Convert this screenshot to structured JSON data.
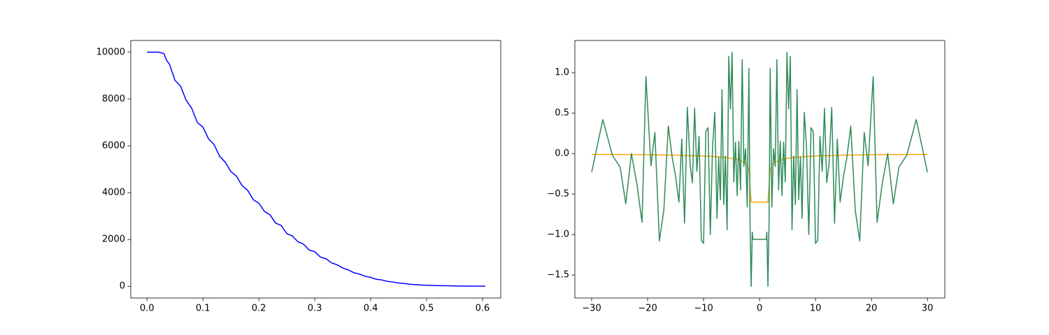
{
  "chart_data": [
    {
      "type": "line",
      "x": [
        0,
        0.01,
        0.02,
        0.03,
        0.035,
        0.04,
        0.05,
        0.06,
        0.07,
        0.08,
        0.09,
        0.1,
        0.11,
        0.12,
        0.13,
        0.14,
        0.15,
        0.16,
        0.17,
        0.18,
        0.19,
        0.2,
        0.21,
        0.22,
        0.23,
        0.24,
        0.25,
        0.26,
        0.27,
        0.28,
        0.29,
        0.3,
        0.31,
        0.32,
        0.33,
        0.34,
        0.35,
        0.36,
        0.37,
        0.38,
        0.39,
        0.4,
        0.41,
        0.42,
        0.43,
        0.44,
        0.45,
        0.46,
        0.47,
        0.48,
        0.49,
        0.5,
        0.52,
        0.54,
        0.56,
        0.58,
        0.6,
        0.605
      ],
      "values": [
        10000,
        10000,
        10000,
        9950,
        9650,
        9500,
        8800,
        8550,
        7950,
        7600,
        7000,
        6800,
        6300,
        6050,
        5550,
        5300,
        4900,
        4700,
        4300,
        4100,
        3700,
        3550,
        3200,
        3050,
        2700,
        2600,
        2250,
        2150,
        1900,
        1800,
        1550,
        1480,
        1250,
        1180,
        1000,
        920,
        780,
        700,
        580,
        520,
        430,
        380,
        300,
        270,
        210,
        180,
        140,
        120,
        90,
        70,
        55,
        45,
        30,
        20,
        12,
        8,
        5,
        5
      ],
      "color": "#0000ff",
      "xlim": [
        -0.029,
        0.6325
      ],
      "xticks": [
        {
          "value": 0,
          "label": "0.0"
        },
        0.1,
        0.2,
        0.3,
        0.4,
        0.5,
        0.6
      ],
      "ylim": [
        -500,
        10500
      ],
      "yticks": [
        0,
        2000,
        4000,
        6000,
        8000,
        10000
      ]
    },
    {
      "type": "line",
      "x": [
        -30,
        -28,
        -26.3,
        -24.9,
        -23.9,
        -22.9,
        -21.9,
        -21.0,
        -20.3,
        -19.4,
        -18.7,
        -17.9,
        -17.1,
        -16.3,
        -15.6,
        -15.0,
        -14.4,
        -13.9,
        -13.4,
        -12.9,
        -12.4,
        -12.0,
        -11.6,
        -11.2,
        -10.8,
        -10.4,
        -10.0,
        -9.6,
        -9.2,
        -8.8,
        -8.4,
        -8.0,
        -7.6,
        -7.3,
        -7.0,
        -6.7,
        -6.4,
        -6.1,
        -5.8,
        -5.5,
        -5.2,
        -4.9,
        -4.6,
        -4.3,
        -4.0,
        -3.7,
        -3.4,
        -3.1,
        -2.8,
        -2.5,
        -2.2,
        -1.9,
        -1.7,
        -1.5,
        -1.3,
        -1.2,
        0,
        1.2,
        1.3,
        1.5,
        1.7,
        1.9,
        2.2,
        2.5,
        2.8,
        3.1,
        3.4,
        3.7,
        4.0,
        4.3,
        4.6,
        4.9,
        5.2,
        5.5,
        5.8,
        6.1,
        6.4,
        6.7,
        7.0,
        7.3,
        7.6,
        8.0,
        8.4,
        8.8,
        9.2,
        9.6,
        10.0,
        10.4,
        10.8,
        11.2,
        11.6,
        12.0,
        12.4,
        12.9,
        13.4,
        13.9,
        14.4,
        15.0,
        15.6,
        16.3,
        17.1,
        17.9,
        18.7,
        19.4,
        20.3,
        21.0,
        21.9,
        22.9,
        23.9,
        24.9,
        26.3,
        28,
        30
      ],
      "series": [
        {
          "color": "#ffa500",
          "values": [
            -0.01,
            -0.011,
            -0.011,
            -0.012,
            -0.013,
            -0.013,
            -0.014,
            -0.014,
            -0.015,
            -0.015,
            -0.016,
            -0.017,
            -0.018,
            -0.018,
            -0.019,
            -0.02,
            -0.021,
            -0.022,
            -0.022,
            -0.023,
            -0.024,
            -0.025,
            -0.026,
            -0.027,
            -0.028,
            -0.029,
            -0.03,
            -0.031,
            -0.033,
            -0.034,
            -0.036,
            -0.038,
            -0.039,
            -0.041,
            -0.043,
            -0.045,
            -0.047,
            -0.049,
            -0.052,
            -0.055,
            -0.058,
            -0.061,
            -0.065,
            -0.07,
            -0.075,
            -0.081,
            -0.088,
            -0.097,
            -0.107,
            -0.12,
            -0.136,
            -0.2,
            -0.4,
            -0.6,
            -0.6,
            -0.6,
            -0.6,
            -0.6,
            -0.6,
            -0.6,
            -0.4,
            -0.2,
            -0.136,
            -0.12,
            -0.107,
            -0.097,
            -0.088,
            -0.081,
            -0.075,
            -0.07,
            -0.065,
            -0.061,
            -0.058,
            -0.055,
            -0.052,
            -0.049,
            -0.047,
            -0.045,
            -0.043,
            -0.041,
            -0.039,
            -0.038,
            -0.036,
            -0.034,
            -0.033,
            -0.031,
            -0.03,
            -0.029,
            -0.028,
            -0.027,
            -0.026,
            -0.025,
            -0.024,
            -0.023,
            -0.022,
            -0.022,
            -0.021,
            -0.02,
            -0.019,
            -0.018,
            -0.018,
            -0.017,
            -0.016,
            -0.015,
            -0.015,
            -0.014,
            -0.014,
            -0.013,
            -0.013,
            -0.012,
            -0.011,
            -0.011,
            -0.01
          ]
        },
        {
          "color": "#2e8b57",
          "values": [
            -0.23,
            0.42,
            -0.02,
            -0.17,
            -0.62,
            0.0,
            -0.38,
            -0.85,
            0.95,
            -0.15,
            0.26,
            -1.08,
            -0.7,
            0.34,
            -0.05,
            -0.28,
            -0.6,
            0.18,
            -0.86,
            0.57,
            -0.14,
            -0.36,
            0.56,
            -0.22,
            0.21,
            -1.07,
            -1.11,
            0.27,
            0.32,
            -1.0,
            0.07,
            0.51,
            -0.8,
            -0.04,
            -0.57,
            0.79,
            -0.63,
            -0.03,
            -0.94,
            1.2,
            0.55,
            1.25,
            -0.35,
            0.14,
            -0.52,
            0.15,
            -0.45,
            1.16,
            -0.16,
            0.06,
            -0.66,
            1.05,
            -0.85,
            -1.64,
            -0.97,
            -1.06,
            -1.06,
            -1.06,
            -0.97,
            -1.64,
            -0.85,
            1.05,
            -0.66,
            0.06,
            -0.16,
            1.16,
            -0.45,
            0.15,
            -0.52,
            0.14,
            -0.35,
            1.25,
            0.55,
            1.2,
            -0.94,
            -0.03,
            -0.63,
            0.79,
            -0.57,
            -0.04,
            -0.8,
            0.51,
            0.07,
            -1.0,
            0.32,
            0.27,
            -1.11,
            -1.07,
            0.21,
            -0.22,
            0.56,
            -0.36,
            -0.14,
            0.57,
            -0.86,
            0.18,
            -0.6,
            -0.28,
            -0.05,
            0.34,
            -0.7,
            -1.08,
            0.26,
            -0.15,
            0.95,
            -0.85,
            -0.38,
            0.0,
            -0.62,
            -0.17,
            -0.02,
            0.42,
            -0.23
          ]
        }
      ],
      "xlim": [
        -33,
        33.1
      ],
      "xticks": [
        {
          "value": -30,
          "label": "−30"
        },
        {
          "value": -20,
          "label": "−20"
        },
        {
          "value": -10,
          "label": "−10"
        },
        0,
        10,
        20,
        30
      ],
      "ylim": [
        -1.784,
        1.397
      ],
      "yticks": [
        {
          "value": -1.5,
          "label": "−1.5"
        },
        {
          "value": -1,
          "label": "−1.0"
        },
        {
          "value": -0.5,
          "label": "−0.5"
        },
        {
          "value": 0,
          "label": "0.0"
        },
        0.5,
        {
          "value": 1,
          "label": "1.0"
        }
      ]
    }
  ]
}
